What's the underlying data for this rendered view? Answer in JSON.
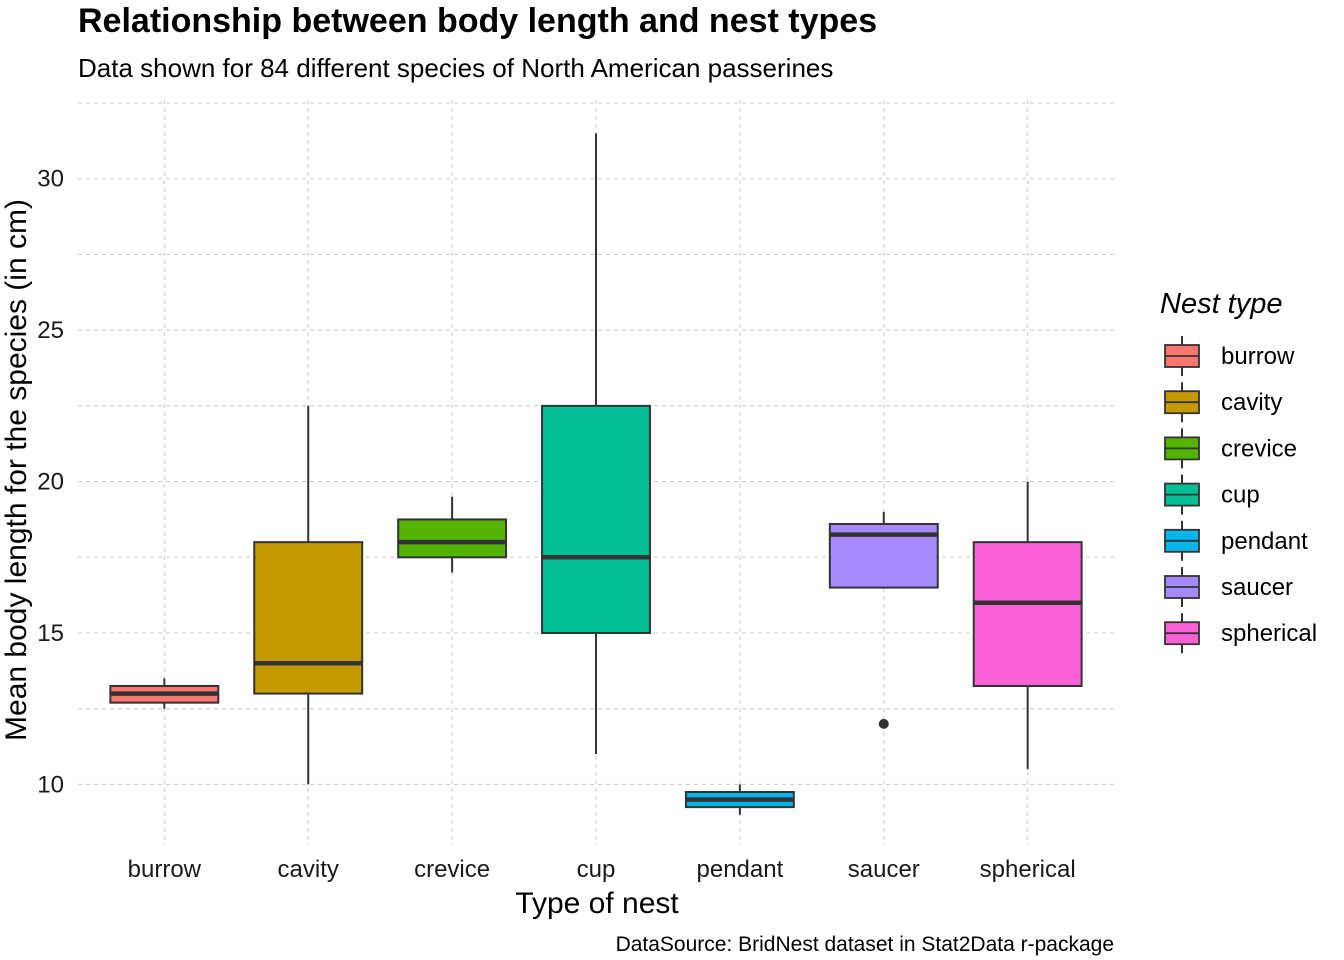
{
  "chart_data": {
    "type": "box",
    "title": "Relationship between body length and nest types",
    "subtitle": "Data shown for 84 different species of North American passerines",
    "xlabel": "Type of nest",
    "ylabel": "Mean body length for the species (in cm)",
    "caption": "DataSource: BridNest dataset in Stat2Data r-package",
    "legend_title": "Nest type",
    "legend_position": "right",
    "ylim": [
      8,
      32.6
    ],
    "yticks": [
      10,
      15,
      20,
      25,
      30
    ],
    "grid": true,
    "categories": [
      "burrow",
      "cavity",
      "crevice",
      "cup",
      "pendant",
      "saucer",
      "spherical"
    ],
    "boxes": [
      {
        "name": "burrow",
        "color": "#F8766D",
        "min": 12.5,
        "q1": 12.7,
        "median": 13.0,
        "q3": 13.25,
        "max": 13.5,
        "outliers": []
      },
      {
        "name": "cavity",
        "color": "#C49A00",
        "min": 10.0,
        "q1": 13.0,
        "median": 14.0,
        "q3": 18.0,
        "max": 22.5,
        "outliers": []
      },
      {
        "name": "crevice",
        "color": "#53B400",
        "min": 17.0,
        "q1": 17.5,
        "median": 18.0,
        "q3": 18.75,
        "max": 19.5,
        "outliers": []
      },
      {
        "name": "cup",
        "color": "#00C094",
        "min": 11.0,
        "q1": 15.0,
        "median": 17.5,
        "q3": 22.5,
        "max": 31.5,
        "outliers": []
      },
      {
        "name": "pendant",
        "color": "#00B6EB",
        "min": 9.0,
        "q1": 9.25,
        "median": 9.5,
        "q3": 9.75,
        "max": 10.0,
        "outliers": []
      },
      {
        "name": "saucer",
        "color": "#A58AFF",
        "min": 16.5,
        "q1": 16.5,
        "median": 18.25,
        "q3": 18.6,
        "max": 19.0,
        "outliers": [
          12.0
        ]
      },
      {
        "name": "spherical",
        "color": "#FB61D7",
        "min": 10.5,
        "q1": 13.25,
        "median": 16.0,
        "q3": 18.0,
        "max": 20.0,
        "outliers": []
      }
    ]
  }
}
